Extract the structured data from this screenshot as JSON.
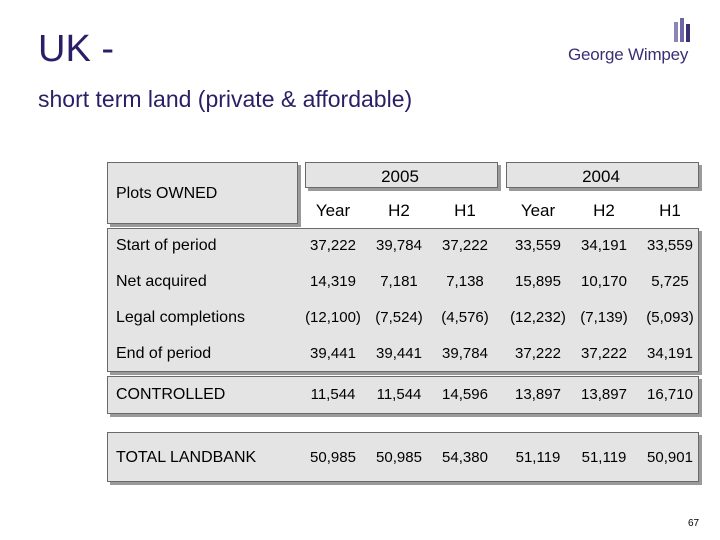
{
  "slide": {
    "title": "UK -",
    "subtitle": "short term land (private & affordable)",
    "brand": "George Wimpey",
    "page_number": "67"
  },
  "table": {
    "corner_label": "Plots OWNED",
    "year_groups": [
      "2005",
      "2004"
    ],
    "sub_headers": [
      "Year",
      "H2",
      "H1",
      "Year",
      "H2",
      "H1"
    ],
    "rows": [
      {
        "label": "Start of period",
        "values": [
          "37,222",
          "39,784",
          "37,222",
          "33,559",
          "34,191",
          "33,559"
        ]
      },
      {
        "label": "Net acquired",
        "values": [
          "14,319",
          "7,181",
          "7,138",
          "15,895",
          "10,170",
          "5,725"
        ]
      },
      {
        "label": "Legal completions",
        "values": [
          "(12,100)",
          "(7,524)",
          "(4,576)",
          "(12,232)",
          "(7,139)",
          "(5,093)"
        ]
      },
      {
        "label": "End of period",
        "values": [
          "39,441",
          "39,441",
          "39,784",
          "37,222",
          "37,222",
          "34,191"
        ]
      }
    ],
    "controlled": {
      "label": "CONTROLLED",
      "values": [
        "11,544",
        "11,544",
        "14,596",
        "13,897",
        "13,897",
        "16,710"
      ]
    },
    "total": {
      "label": "TOTAL LANDBANK",
      "values": [
        "50,985",
        "50,985",
        "54,380",
        "51,119",
        "51,119",
        "50,901"
      ]
    }
  }
}
